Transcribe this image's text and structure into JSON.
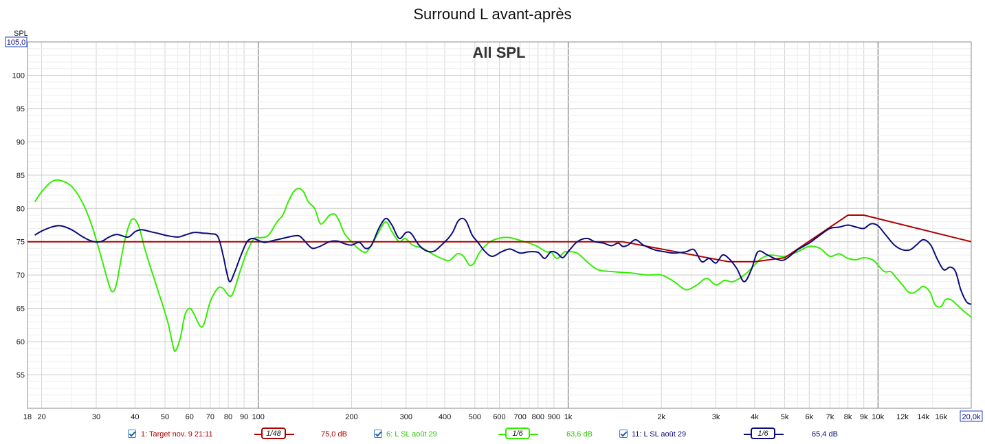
{
  "title": "Surround L avant-après",
  "colors": {
    "target": "#b00000",
    "before": "#33ee00",
    "after": "#0a0a7a",
    "grid": "#d4d4d4",
    "gridMajor": "#555555",
    "checkbox": "#1a5fb4"
  },
  "chart_data": {
    "type": "line",
    "title": "Surround L avant-après",
    "subtitle": "All SPL",
    "ylabel": "SPL",
    "xlabel": "",
    "x_scale": "log",
    "xlim": [
      18,
      20000
    ],
    "ylim": [
      50,
      105
    ],
    "ymax_label": "105,0",
    "xmax_label": "20,0k",
    "grid": true,
    "legend": "bottom",
    "x_ticks": [
      {
        "v": 18,
        "l": "18"
      },
      {
        "v": 20,
        "l": "20"
      },
      {
        "v": 30,
        "l": "30"
      },
      {
        "v": 40,
        "l": "40"
      },
      {
        "v": 50,
        "l": "50"
      },
      {
        "v": 60,
        "l": "60"
      },
      {
        "v": 70,
        "l": "70"
      },
      {
        "v": 80,
        "l": "80"
      },
      {
        "v": 90,
        "l": "90"
      },
      {
        "v": 100,
        "l": "100"
      },
      {
        "v": 200,
        "l": "200"
      },
      {
        "v": 300,
        "l": "300"
      },
      {
        "v": 400,
        "l": "400"
      },
      {
        "v": 500,
        "l": "500"
      },
      {
        "v": 600,
        "l": "600"
      },
      {
        "v": 700,
        "l": "700"
      },
      {
        "v": 800,
        "l": "800"
      },
      {
        "v": 900,
        "l": "900"
      },
      {
        "v": 1000,
        "l": "1k"
      },
      {
        "v": 2000,
        "l": "2k"
      },
      {
        "v": 3000,
        "l": "3k"
      },
      {
        "v": 4000,
        "l": "4k"
      },
      {
        "v": 5000,
        "l": "5k"
      },
      {
        "v": 6000,
        "l": "6k"
      },
      {
        "v": 7000,
        "l": "7k"
      },
      {
        "v": 8000,
        "l": "8k"
      },
      {
        "v": 9000,
        "l": "9k"
      },
      {
        "v": 10000,
        "l": "10k"
      },
      {
        "v": 12000,
        "l": "12k"
      },
      {
        "v": 14000,
        "l": "14k"
      },
      {
        "v": 16000,
        "l": "16k"
      }
    ],
    "y_ticks": [
      55,
      60,
      65,
      70,
      75,
      80,
      85,
      90,
      95,
      100
    ],
    "series": [
      {
        "name": "1: Target nov. 9 21:11",
        "smoothing": "1/48",
        "level": "75,0 dB",
        "color": "#b00000",
        "points": [
          [
            18,
            75
          ],
          [
            1500,
            75
          ],
          [
            3300,
            72
          ],
          [
            4000,
            72
          ],
          [
            5000,
            72.6
          ],
          [
            8000,
            79
          ],
          [
            9000,
            79
          ],
          [
            20000,
            75
          ]
        ]
      },
      {
        "name": "6: L SL août 29",
        "smoothing": "1/6",
        "level": "63,6 dB",
        "color": "#33ee00",
        "points": [
          [
            19,
            81
          ],
          [
            20,
            82.5
          ],
          [
            21.5,
            84
          ],
          [
            23,
            84.2
          ],
          [
            25,
            83.3
          ],
          [
            27,
            81
          ],
          [
            29,
            77.5
          ],
          [
            31,
            73
          ],
          [
            33,
            68.5
          ],
          [
            34,
            67.5
          ],
          [
            35,
            69
          ],
          [
            37,
            75
          ],
          [
            39,
            78.3
          ],
          [
            41,
            77.5
          ],
          [
            43,
            74
          ],
          [
            45,
            71
          ],
          [
            48,
            67
          ],
          [
            51,
            63
          ],
          [
            53,
            59.5
          ],
          [
            54,
            58.6
          ],
          [
            56,
            60.5
          ],
          [
            58,
            64
          ],
          [
            60,
            65
          ],
          [
            62,
            64.2
          ],
          [
            65,
            62.3
          ],
          [
            67,
            62.8
          ],
          [
            70,
            66
          ],
          [
            74,
            68
          ],
          [
            77,
            68
          ],
          [
            80,
            67
          ],
          [
            82,
            66.9
          ],
          [
            84,
            68
          ],
          [
            88,
            71
          ],
          [
            92,
            73.5
          ],
          [
            97,
            75.5
          ],
          [
            102,
            75.6
          ],
          [
            108,
            76
          ],
          [
            115,
            78
          ],
          [
            120,
            79
          ],
          [
            125,
            81
          ],
          [
            130,
            82.5
          ],
          [
            135,
            83
          ],
          [
            140,
            82.5
          ],
          [
            145,
            81
          ],
          [
            152,
            80
          ],
          [
            158,
            77.8
          ],
          [
            163,
            78
          ],
          [
            170,
            79
          ],
          [
            177,
            79.1
          ],
          [
            183,
            78
          ],
          [
            190,
            76.2
          ],
          [
            200,
            75
          ],
          [
            210,
            74
          ],
          [
            222,
            73.4
          ],
          [
            232,
            74.5
          ],
          [
            245,
            76.5
          ],
          [
            258,
            78
          ],
          [
            270,
            76.5
          ],
          [
            285,
            75
          ],
          [
            298,
            75.5
          ],
          [
            315,
            74.5
          ],
          [
            340,
            74
          ],
          [
            370,
            73
          ],
          [
            400,
            72.3
          ],
          [
            415,
            72.2
          ],
          [
            440,
            73.2
          ],
          [
            460,
            72.8
          ],
          [
            480,
            71.5
          ],
          [
            497,
            71.8
          ],
          [
            520,
            73.5
          ],
          [
            560,
            75
          ],
          [
            610,
            75.6
          ],
          [
            650,
            75.6
          ],
          [
            700,
            75.2
          ],
          [
            780,
            74.5
          ],
          [
            850,
            73.5
          ],
          [
            880,
            73.5
          ],
          [
            920,
            72.5
          ],
          [
            970,
            73.4
          ],
          [
            1000,
            73.5
          ],
          [
            1070,
            73.3
          ],
          [
            1150,
            72
          ],
          [
            1250,
            70.8
          ],
          [
            1400,
            70.5
          ],
          [
            1600,
            70.3
          ],
          [
            1800,
            70
          ],
          [
            2000,
            70
          ],
          [
            2200,
            69
          ],
          [
            2400,
            67.8
          ],
          [
            2600,
            68.5
          ],
          [
            2800,
            69.5
          ],
          [
            3000,
            68.5
          ],
          [
            3200,
            69.2
          ],
          [
            3400,
            69
          ],
          [
            3700,
            70
          ],
          [
            4000,
            71.5
          ],
          [
            4200,
            72.5
          ],
          [
            4500,
            73
          ],
          [
            5000,
            72.8
          ],
          [
            5500,
            73.5
          ],
          [
            6000,
            74.3
          ],
          [
            6500,
            74
          ],
          [
            7000,
            72.8
          ],
          [
            7500,
            73.2
          ],
          [
            8000,
            72.5
          ],
          [
            8500,
            72.3
          ],
          [
            9000,
            72.6
          ],
          [
            9600,
            72.3
          ],
          [
            10000,
            71.5
          ],
          [
            10500,
            70.5
          ],
          [
            11000,
            70.5
          ],
          [
            11500,
            69.5
          ],
          [
            12000,
            68.5
          ],
          [
            12500,
            67.5
          ],
          [
            13000,
            67.3
          ],
          [
            13500,
            67.8
          ],
          [
            14000,
            68.3
          ],
          [
            14700,
            67.5
          ],
          [
            15300,
            65.5
          ],
          [
            16000,
            65.3
          ],
          [
            16500,
            66.3
          ],
          [
            17200,
            66.3
          ],
          [
            18000,
            65.5
          ],
          [
            19000,
            64.5
          ],
          [
            20000,
            63.7
          ]
        ]
      },
      {
        "name": "11: L SL août 29",
        "smoothing": "1/6",
        "level": "65,4 dB",
        "color": "#0a0a7a",
        "points": [
          [
            19,
            76
          ],
          [
            20,
            76.6
          ],
          [
            21.5,
            77.2
          ],
          [
            23,
            77.4
          ],
          [
            25,
            76.8
          ],
          [
            27,
            75.8
          ],
          [
            29,
            75.1
          ],
          [
            31,
            75
          ],
          [
            33,
            75.7
          ],
          [
            35,
            76.1
          ],
          [
            38,
            75.7
          ],
          [
            40,
            76.5
          ],
          [
            42,
            76.8
          ],
          [
            45,
            76.5
          ],
          [
            48,
            76.2
          ],
          [
            51,
            75.9
          ],
          [
            55,
            75.7
          ],
          [
            58,
            76
          ],
          [
            62,
            76.4
          ],
          [
            66,
            76.3
          ],
          [
            70,
            76.2
          ],
          [
            74,
            75.8
          ],
          [
            77,
            73
          ],
          [
            79,
            70.5
          ],
          [
            81,
            69
          ],
          [
            84,
            70.5
          ],
          [
            88,
            73
          ],
          [
            92,
            75
          ],
          [
            96,
            75.5
          ],
          [
            100,
            75.2
          ],
          [
            105,
            74.9
          ],
          [
            112,
            75.2
          ],
          [
            120,
            75.5
          ],
          [
            128,
            75.8
          ],
          [
            135,
            75.9
          ],
          [
            140,
            75.3
          ],
          [
            145,
            74.5
          ],
          [
            150,
            74
          ],
          [
            158,
            74.3
          ],
          [
            170,
            75
          ],
          [
            180,
            75.1
          ],
          [
            190,
            74.7
          ],
          [
            200,
            74.5
          ],
          [
            212,
            74.9
          ],
          [
            222,
            74
          ],
          [
            232,
            74.5
          ],
          [
            245,
            77
          ],
          [
            258,
            78.5
          ],
          [
            270,
            77.5
          ],
          [
            285,
            75.5
          ],
          [
            300,
            76.4
          ],
          [
            312,
            76.2
          ],
          [
            330,
            74.5
          ],
          [
            350,
            73.6
          ],
          [
            370,
            73.6
          ],
          [
            390,
            74.5
          ],
          [
            410,
            75.5
          ],
          [
            425,
            76.5
          ],
          [
            440,
            78
          ],
          [
            455,
            78.5
          ],
          [
            470,
            78
          ],
          [
            490,
            76
          ],
          [
            510,
            75
          ],
          [
            540,
            73.5
          ],
          [
            570,
            72.8
          ],
          [
            610,
            73.5
          ],
          [
            650,
            73.9
          ],
          [
            700,
            73.3
          ],
          [
            750,
            73.5
          ],
          [
            800,
            73.4
          ],
          [
            840,
            72.5
          ],
          [
            880,
            73.5
          ],
          [
            920,
            73.3
          ],
          [
            960,
            72.6
          ],
          [
            1000,
            73.5
          ],
          [
            1070,
            75
          ],
          [
            1150,
            75.5
          ],
          [
            1220,
            75
          ],
          [
            1300,
            74.8
          ],
          [
            1380,
            74.4
          ],
          [
            1450,
            74.8
          ],
          [
            1500,
            74.3
          ],
          [
            1560,
            74.5
          ],
          [
            1650,
            75.3
          ],
          [
            1750,
            74.5
          ],
          [
            1900,
            73.8
          ],
          [
            2050,
            73.5
          ],
          [
            2200,
            73.3
          ],
          [
            2400,
            73.5
          ],
          [
            2550,
            73.8
          ],
          [
            2700,
            72
          ],
          [
            2850,
            72.5
          ],
          [
            3000,
            71.8
          ],
          [
            3150,
            73
          ],
          [
            3300,
            72.5
          ],
          [
            3500,
            71
          ],
          [
            3700,
            69
          ],
          [
            3900,
            70.8
          ],
          [
            4100,
            73.5
          ],
          [
            4400,
            73
          ],
          [
            4700,
            72.4
          ],
          [
            5000,
            72.3
          ],
          [
            5500,
            73.8
          ],
          [
            6000,
            74.8
          ],
          [
            6500,
            76
          ],
          [
            7000,
            77
          ],
          [
            7500,
            77.2
          ],
          [
            8000,
            77.5
          ],
          [
            8500,
            77.2
          ],
          [
            9000,
            77
          ],
          [
            9500,
            77.7
          ],
          [
            10000,
            77.4
          ],
          [
            10600,
            76
          ],
          [
            11300,
            74.5
          ],
          [
            12000,
            73.8
          ],
          [
            12700,
            73.8
          ],
          [
            13300,
            74.5
          ],
          [
            14000,
            75.3
          ],
          [
            14800,
            74.5
          ],
          [
            15500,
            72.5
          ],
          [
            16300,
            70.8
          ],
          [
            17100,
            71.2
          ],
          [
            17800,
            70.5
          ],
          [
            18500,
            67.8
          ],
          [
            19300,
            66
          ],
          [
            20000,
            65.6
          ]
        ]
      }
    ]
  },
  "legend_items": [
    {
      "label": "1: Target nov. 9 21:11",
      "smoothing": "1/48",
      "level": "75,0 dB"
    },
    {
      "label": "6: L SL août 29",
      "smoothing": "1/6",
      "level": "63,6 dB"
    },
    {
      "label": "11: L SL août 29",
      "smoothing": "1/6",
      "level": "65,4 dB"
    }
  ]
}
